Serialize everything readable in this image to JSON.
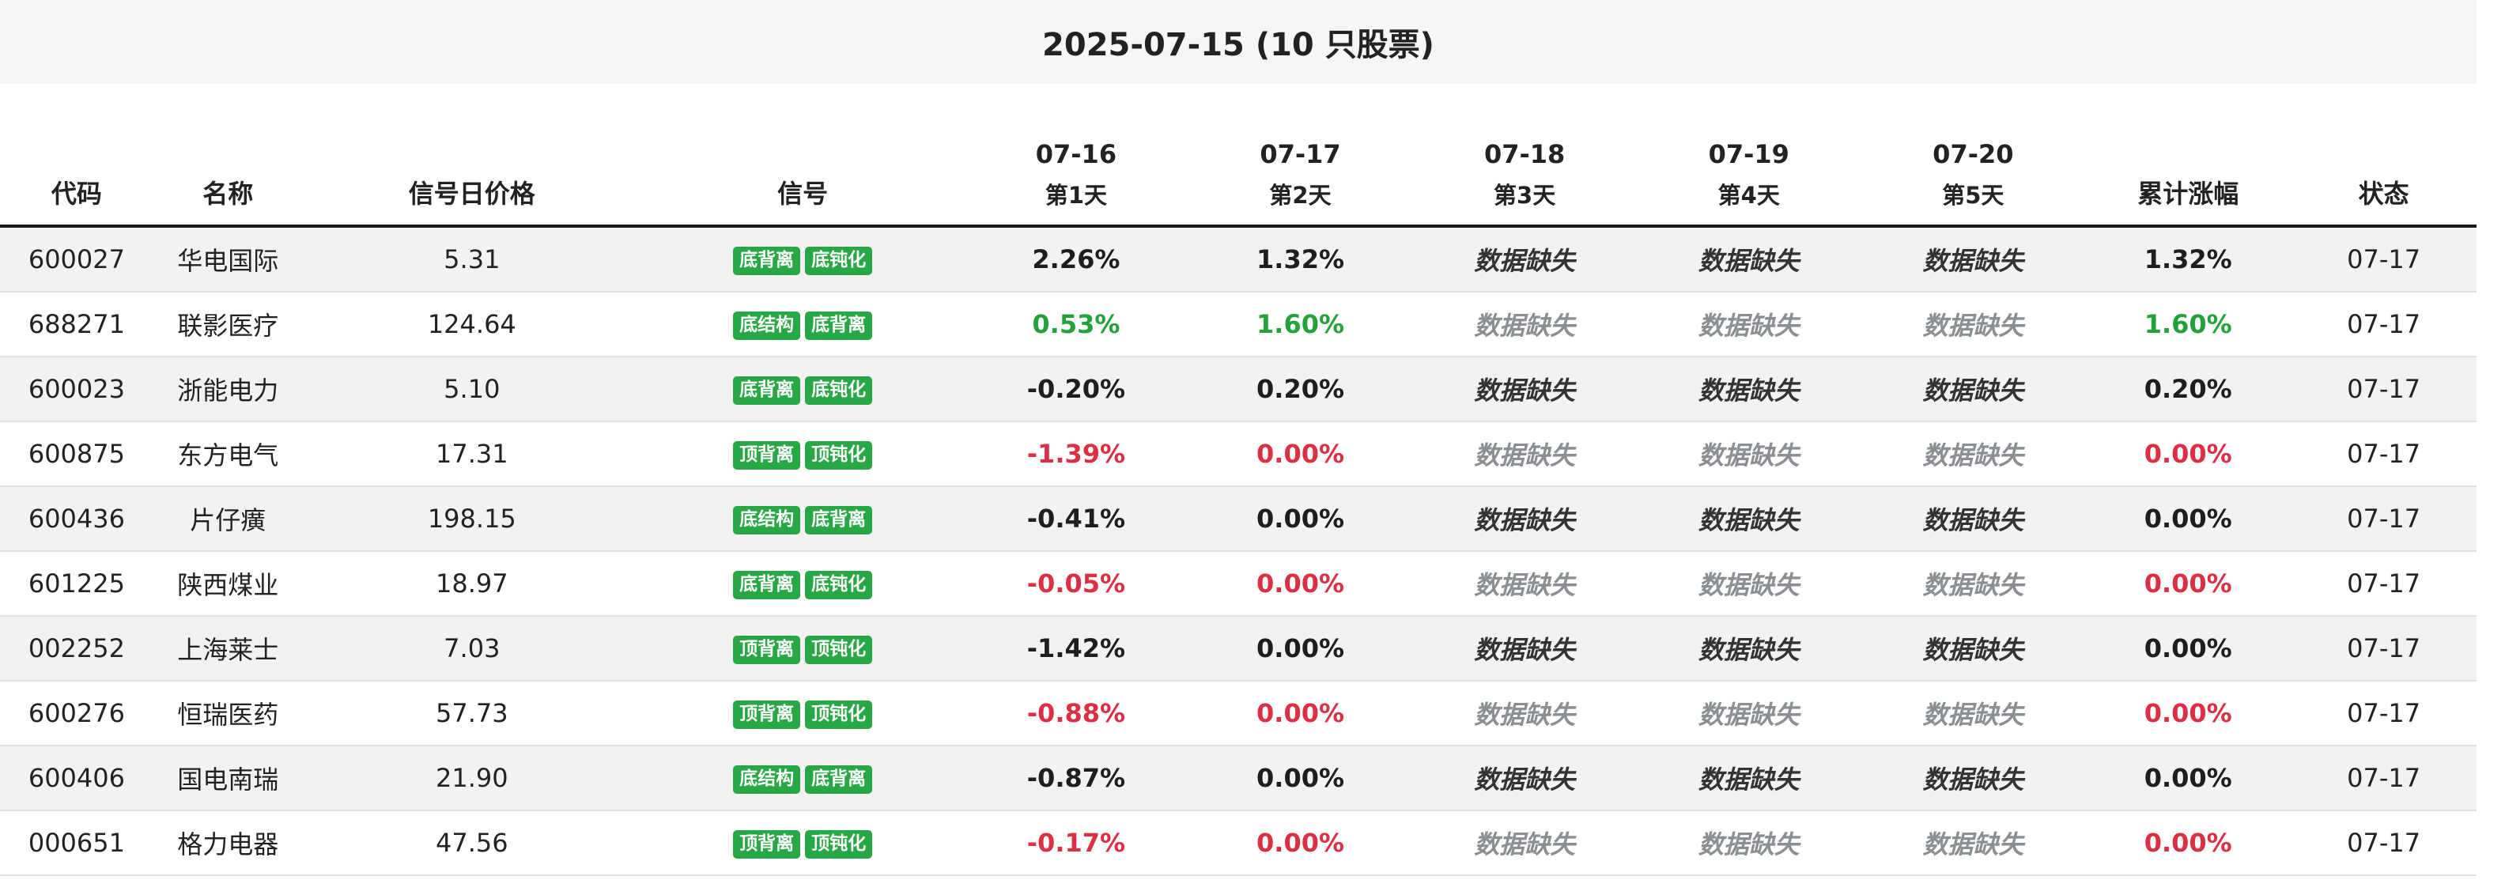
{
  "title": "2025-07-15 (10 只股票)",
  "headers": {
    "code": "代码",
    "name": "名称",
    "price": "信号日价格",
    "signal": "信号",
    "days": [
      {
        "date": "07-16",
        "label": "第1天"
      },
      {
        "date": "07-17",
        "label": "第2天"
      },
      {
        "date": "07-18",
        "label": "第3天"
      },
      {
        "date": "07-19",
        "label": "第4天"
      },
      {
        "date": "07-20",
        "label": "第5天"
      }
    ],
    "cumulative": "累计涨幅",
    "status": "状态"
  },
  "colors": {
    "green": "#22a33a",
    "red": "#dc2f44",
    "neutral": "#1e1e1e",
    "badge": "#27a844",
    "missing_gray": "#8b8e93"
  },
  "rows": [
    {
      "code": "600027",
      "name": "华电国际",
      "price": "5.31",
      "signals": [
        "底背离",
        "底钝化"
      ],
      "days": [
        "2.26%",
        "1.32%",
        "数据缺失",
        "数据缺失",
        "数据缺失"
      ],
      "day_tones": [
        "neutral",
        "neutral",
        "missing",
        "missing",
        "missing"
      ],
      "cumulative": "1.32%",
      "cum_tone": "neutral",
      "status": "07-17"
    },
    {
      "code": "688271",
      "name": "联影医疗",
      "price": "124.64",
      "signals": [
        "底结构",
        "底背离"
      ],
      "days": [
        "0.53%",
        "1.60%",
        "数据缺失",
        "数据缺失",
        "数据缺失"
      ],
      "day_tones": [
        "green",
        "green",
        "missing",
        "missing",
        "missing"
      ],
      "cumulative": "1.60%",
      "cum_tone": "green",
      "status": "07-17"
    },
    {
      "code": "600023",
      "name": "浙能电力",
      "price": "5.10",
      "signals": [
        "底背离",
        "底钝化"
      ],
      "days": [
        "-0.20%",
        "0.20%",
        "数据缺失",
        "数据缺失",
        "数据缺失"
      ],
      "day_tones": [
        "neutral",
        "neutral",
        "missing",
        "missing",
        "missing"
      ],
      "cumulative": "0.20%",
      "cum_tone": "neutral",
      "status": "07-17"
    },
    {
      "code": "600875",
      "name": "东方电气",
      "price": "17.31",
      "signals": [
        "顶背离",
        "顶钝化"
      ],
      "days": [
        "-1.39%",
        "0.00%",
        "数据缺失",
        "数据缺失",
        "数据缺失"
      ],
      "day_tones": [
        "red",
        "red",
        "missing",
        "missing",
        "missing"
      ],
      "cumulative": "0.00%",
      "cum_tone": "red",
      "status": "07-17"
    },
    {
      "code": "600436",
      "name": "片仔癀",
      "price": "198.15",
      "signals": [
        "底结构",
        "底背离"
      ],
      "days": [
        "-0.41%",
        "0.00%",
        "数据缺失",
        "数据缺失",
        "数据缺失"
      ],
      "day_tones": [
        "neutral",
        "neutral",
        "missing",
        "missing",
        "missing"
      ],
      "cumulative": "0.00%",
      "cum_tone": "neutral",
      "status": "07-17"
    },
    {
      "code": "601225",
      "name": "陕西煤业",
      "price": "18.97",
      "signals": [
        "底背离",
        "底钝化"
      ],
      "days": [
        "-0.05%",
        "0.00%",
        "数据缺失",
        "数据缺失",
        "数据缺失"
      ],
      "day_tones": [
        "red",
        "red",
        "missing",
        "missing",
        "missing"
      ],
      "cumulative": "0.00%",
      "cum_tone": "red",
      "status": "07-17"
    },
    {
      "code": "002252",
      "name": "上海莱士",
      "price": "7.03",
      "signals": [
        "顶背离",
        "顶钝化"
      ],
      "days": [
        "-1.42%",
        "0.00%",
        "数据缺失",
        "数据缺失",
        "数据缺失"
      ],
      "day_tones": [
        "neutral",
        "neutral",
        "missing",
        "missing",
        "missing"
      ],
      "cumulative": "0.00%",
      "cum_tone": "neutral",
      "status": "07-17"
    },
    {
      "code": "600276",
      "name": "恒瑞医药",
      "price": "57.73",
      "signals": [
        "顶背离",
        "顶钝化"
      ],
      "days": [
        "-0.88%",
        "0.00%",
        "数据缺失",
        "数据缺失",
        "数据缺失"
      ],
      "day_tones": [
        "red",
        "red",
        "missing",
        "missing",
        "missing"
      ],
      "cumulative": "0.00%",
      "cum_tone": "red",
      "status": "07-17"
    },
    {
      "code": "600406",
      "name": "国电南瑞",
      "price": "21.90",
      "signals": [
        "底结构",
        "底背离"
      ],
      "days": [
        "-0.87%",
        "0.00%",
        "数据缺失",
        "数据缺失",
        "数据缺失"
      ],
      "day_tones": [
        "neutral",
        "neutral",
        "missing",
        "missing",
        "missing"
      ],
      "cumulative": "0.00%",
      "cum_tone": "neutral",
      "status": "07-17"
    },
    {
      "code": "000651",
      "name": "格力电器",
      "price": "47.56",
      "signals": [
        "顶背离",
        "顶钝化"
      ],
      "days": [
        "-0.17%",
        "0.00%",
        "数据缺失",
        "数据缺失",
        "数据缺失"
      ],
      "day_tones": [
        "red",
        "red",
        "missing",
        "missing",
        "missing"
      ],
      "cumulative": "0.00%",
      "cum_tone": "red",
      "status": "07-17"
    }
  ]
}
